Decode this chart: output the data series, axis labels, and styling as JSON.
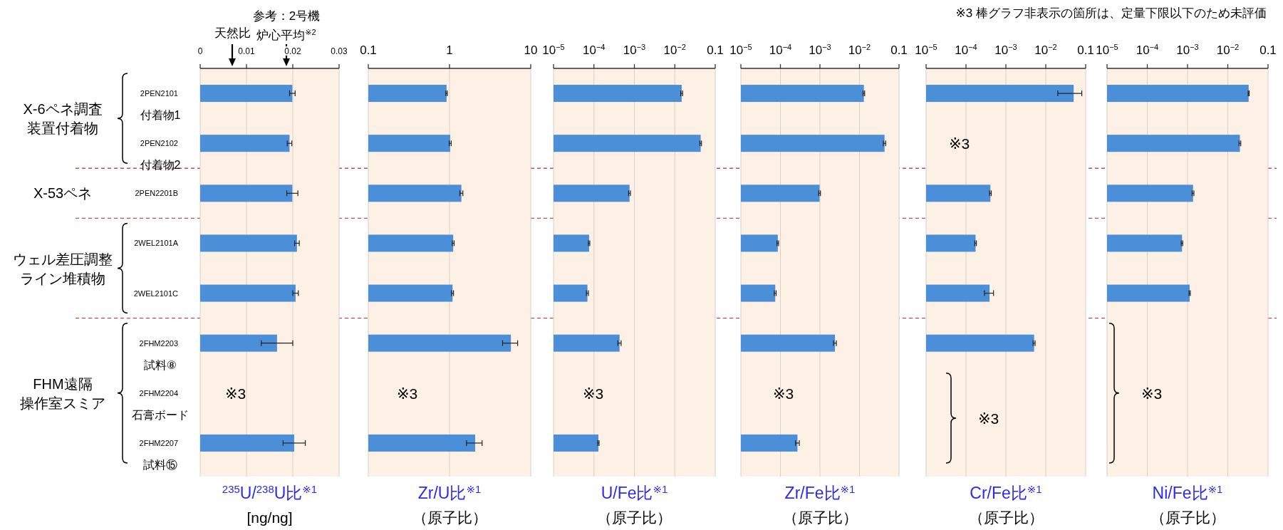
{
  "chart_data": [
    {
      "type": "bar",
      "orientation": "horizontal",
      "categories": [
        "2PEN2101",
        "2PEN2102",
        "2PEN2201B",
        "2WEL2101A",
        "2WEL2101C",
        "2FHM2203",
        "2FHM2204",
        "2FHM2207"
      ],
      "color": "#4a8fd8",
      "values": [
        0.0199,
        0.0193,
        0.0199,
        0.0209,
        0.0206,
        0.0166,
        null,
        0.0203
      ],
      "errors": [
        0.0006,
        0.0005,
        0.0012,
        0.0005,
        0.0006,
        0.0034,
        null,
        0.0024
      ],
      "xlim": [
        0,
        0.03
      ],
      "xticks": [
        0,
        0.01,
        0.02,
        0.03
      ],
      "grid": "x",
      "xlabel": "$^{235}$U/$^{238}$U比$^{※1}$\n[ng/ng]",
      "annotations": [
        "※3  棒グラフ非表示の箇所は、定量下限以下のため未評価",
        "X-6ペネ調査",
        "装置付着物",
        "X-53ペネ",
        "ウェル差圧調整",
        "ライン堆積物",
        "FHM遠隔",
        "操作室スミア",
        "天然比",
        "参考：2号機",
        "炉心平均$^{※2}$",
        "付着物1",
        "付着物2",
        "試料⑧",
        "石膏ボード",
        "試料⑮",
        "※3"
      ]
    },
    {
      "type": "bar",
      "orientation": "horizontal",
      "color": "#4a8fd8",
      "log": "x",
      "tick_labels": "x",
      "values": [
        0.92,
        1.02,
        1.4,
        1.11,
        1.09,
        5.7,
        null,
        2.07
      ],
      "errors": [
        0.02,
        0.03,
        0.06,
        0.03,
        0.03,
        1.2,
        null,
        0.45
      ],
      "xlim": [
        0.1,
        10
      ],
      "xticks": [
        0.1,
        1,
        10
      ],
      "grid": "x",
      "xlabel": "Zr/U比$^{※1}$\n（原子比）",
      "annotations": [
        "※3"
      ]
    },
    {
      "type": "bar",
      "orientation": "horizontal",
      "color": "#4a8fd8",
      "log": "x",
      "tick_labels": "x",
      "values": [
        0.0148,
        0.0437,
        0.00076,
        7.6e-05,
        6.9e-05,
        0.00043,
        null,
        0.000129
      ],
      "errors": [
        0.0008,
        0.002,
        4e-05,
        3e-06,
        4e-06,
        4e-05,
        null,
        5e-06
      ],
      "xlim": [
        1e-05,
        0.1
      ],
      "xticks": [
        {
          "value": 1e-05,
          "label": "10$^{−5}$"
        },
        {
          "value": 0.0001,
          "label": "10$^{−4}$"
        },
        {
          "value": 0.001,
          "label": "10$^{−3}$"
        },
        {
          "value": 0.01,
          "label": "10$^{−2}$"
        },
        0.1
      ],
      "grid": "x",
      "xlabel": "U/Fe比$^{※1}$\n（原子比）",
      "annotations": [
        "※3"
      ]
    },
    {
      "type": "bar",
      "orientation": "horizontal",
      "color": "#4a8fd8",
      "log": "x",
      "tick_labels": "x",
      "values": [
        0.0129,
        0.043,
        0.00098,
        8.6e-05,
        7.4e-05,
        0.0024,
        null,
        0.00027
      ],
      "errors": [
        0.0006,
        0.003,
        5e-05,
        4e-06,
        4e-06,
        0.0002,
        null,
        3e-05
      ],
      "xlim": [
        1e-05,
        0.1
      ],
      "xticks": [
        {
          "value": 1e-05,
          "label": "10$^{−5}$"
        },
        {
          "value": 0.0001,
          "label": "10$^{−4}$"
        },
        {
          "value": 0.001,
          "label": "10$^{−3}$"
        },
        {
          "value": 0.01,
          "label": "10$^{−2}$"
        },
        0.1
      ],
      "grid": "x",
      "xlabel": "Zr/Fe比$^{※1}$\n（原子比）",
      "annotations": [
        "※3"
      ]
    },
    {
      "type": "bar",
      "orientation": "horizontal",
      "color": "#4a8fd8",
      "log": "x",
      "tick_labels": "x",
      "values": [
        0.05,
        null,
        0.00041,
        0.000174,
        0.00039,
        0.0051,
        null,
        null
      ],
      "errors": [
        0.03,
        null,
        2e-05,
        8e-06,
        0.0001,
        0.0003,
        null,
        null
      ],
      "xlim": [
        1e-05,
        0.1
      ],
      "xticks": [
        {
          "value": 1e-05,
          "label": "10$^{−5}$"
        },
        {
          "value": 0.0001,
          "label": "10$^{−4}$"
        },
        {
          "value": 0.001,
          "label": "10$^{−3}$"
        },
        {
          "value": 0.01,
          "label": "10$^{−2}$"
        },
        0.1
      ],
      "grid": "x",
      "xlabel": "Cr/Fe比$^{※1}$\n（原子比）",
      "annotations": [
        "※3",
        "※3"
      ]
    },
    {
      "type": "bar",
      "orientation": "horizontal",
      "color": "#4a8fd8",
      "log": "x",
      "tick_labels": "x",
      "values": [
        0.033,
        0.02,
        0.00137,
        0.00073,
        0.00113,
        null,
        null,
        null
      ],
      "errors": [
        0.001,
        0.001,
        7e-05,
        3e-05,
        4e-05,
        null,
        null,
        null
      ],
      "xlim": [
        1e-05,
        0.1
      ],
      "xticks": [
        {
          "value": 1e-05,
          "label": "10$^{−5}$"
        },
        {
          "value": 0.0001,
          "label": "10$^{−4}$"
        },
        {
          "value": 0.001,
          "label": "10$^{−3}$"
        },
        {
          "value": 0.01,
          "label": "10$^{−2}$"
        },
        0.1
      ],
      "grid": "x",
      "xlabel": "Ni/Fe比$^{※1}$\n（原子比）",
      "annotations": [
        "※3"
      ]
    }
  ]
}
